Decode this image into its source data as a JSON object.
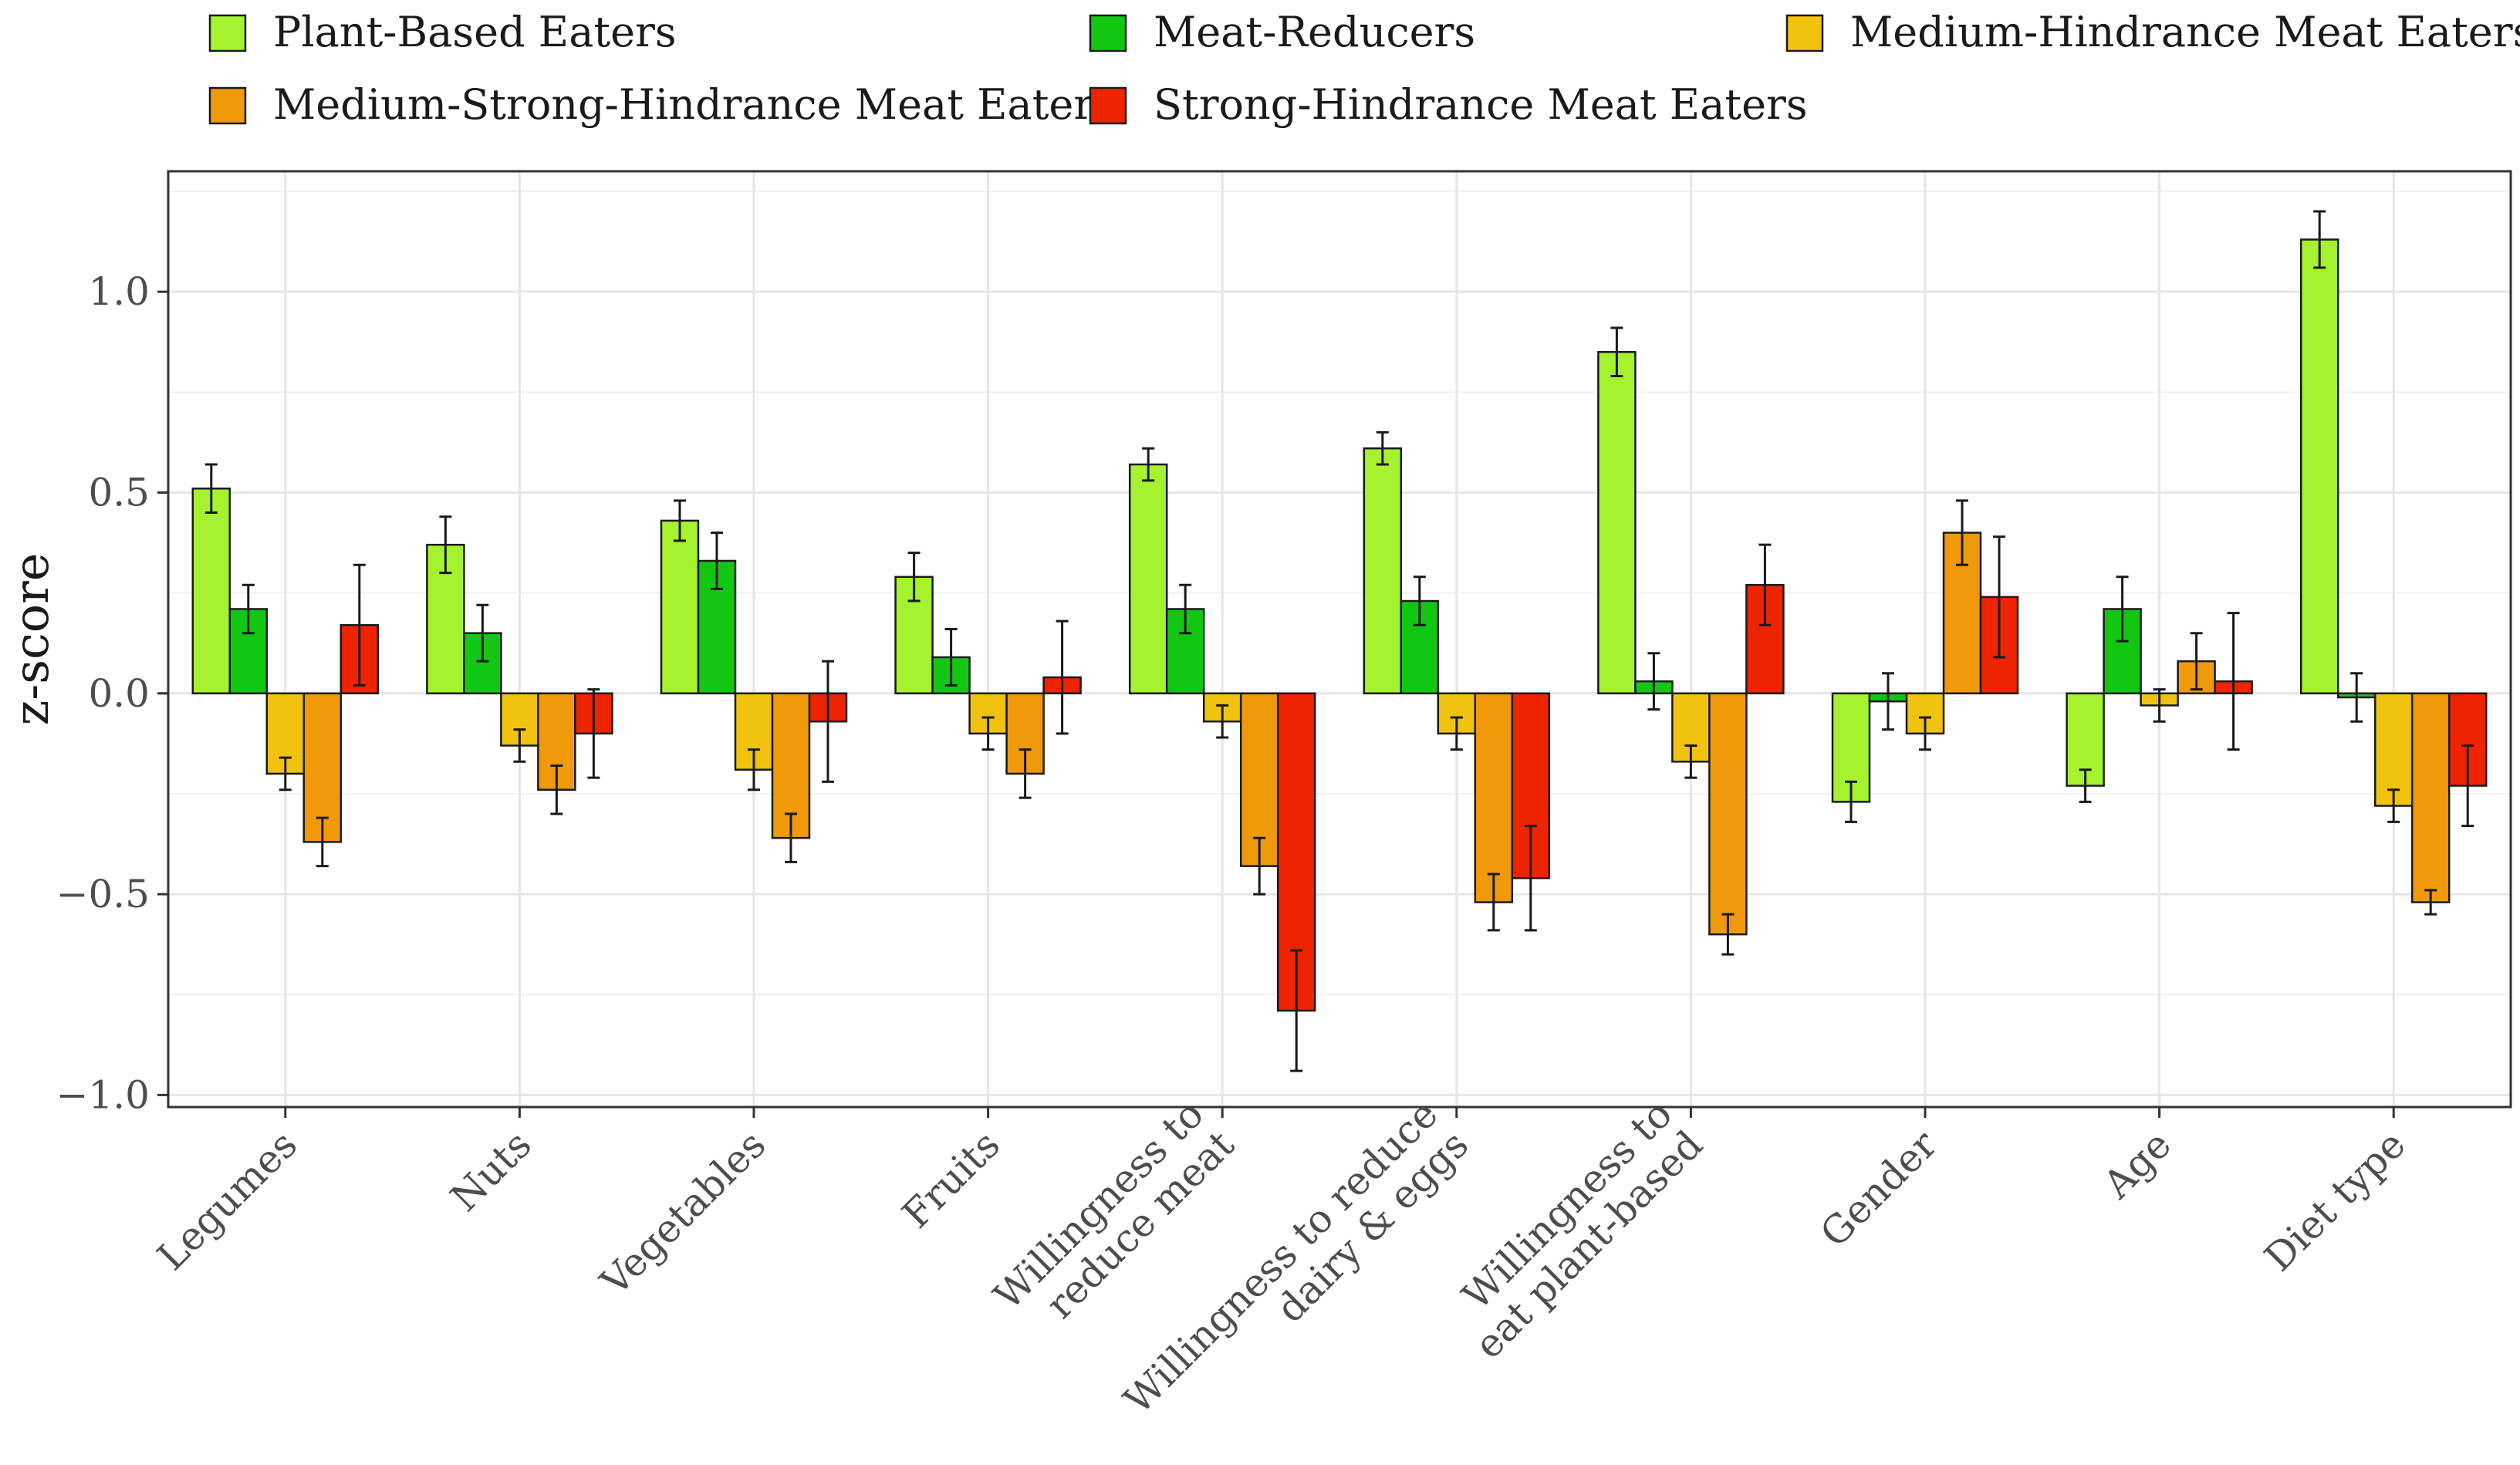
{
  "chart_data": {
    "type": "bar",
    "title": "",
    "xlabel": "",
    "ylabel": "z-score",
    "ylim": [
      -1.03,
      1.3
    ],
    "yticks": [
      1.0,
      0.5,
      0.0,
      -0.5,
      -1.0
    ],
    "ytick_labels": [
      "1.0",
      "0.5",
      "0.0",
      "−0.5",
      "−1.0"
    ],
    "grid": true,
    "legend_position": "top",
    "categories": [
      [
        "Legumes"
      ],
      [
        "Nuts"
      ],
      [
        "Vegetables"
      ],
      [
        "Fruits"
      ],
      [
        "Willingness to",
        "reduce meat"
      ],
      [
        "Willingness to reduce",
        "dairy & eggs"
      ],
      [
        "Willingness to",
        "eat plant-based"
      ],
      [
        "Gender"
      ],
      [
        "Age"
      ],
      [
        "Diet type"
      ]
    ],
    "series": [
      {
        "name": "Plant-Based Eaters",
        "color": "#a5f22e",
        "values": [
          0.51,
          0.37,
          0.43,
          0.29,
          0.57,
          0.61,
          0.85,
          -0.27,
          -0.23,
          1.13
        ],
        "errors": [
          0.06,
          0.07,
          0.05,
          0.06,
          0.04,
          0.04,
          0.06,
          0.05,
          0.04,
          0.07
        ]
      },
      {
        "name": "Meat-Reducers",
        "color": "#12c712",
        "values": [
          0.21,
          0.15,
          0.33,
          0.09,
          0.21,
          0.23,
          0.03,
          -0.02,
          0.21,
          -0.01
        ],
        "errors": [
          0.06,
          0.07,
          0.07,
          0.07,
          0.06,
          0.06,
          0.07,
          0.07,
          0.08,
          0.06
        ]
      },
      {
        "name": "Medium-Hindrance Meat Eaters",
        "color": "#f2c30e",
        "values": [
          -0.2,
          -0.13,
          -0.19,
          -0.1,
          -0.07,
          -0.1,
          -0.17,
          -0.1,
          -0.03,
          -0.28
        ],
        "errors": [
          0.04,
          0.04,
          0.05,
          0.04,
          0.04,
          0.04,
          0.04,
          0.04,
          0.04,
          0.04
        ]
      },
      {
        "name": "Medium-Strong-Hindrance Meat Eaters",
        "color": "#f0990a",
        "values": [
          -0.37,
          -0.24,
          -0.36,
          -0.2,
          -0.43,
          -0.52,
          -0.6,
          0.4,
          0.08,
          -0.52
        ],
        "errors": [
          0.06,
          0.06,
          0.06,
          0.06,
          0.07,
          0.07,
          0.05,
          0.08,
          0.07,
          0.03
        ]
      },
      {
        "name": "Strong-Hindrance Meat Eaters",
        "color": "#ee2300",
        "values": [
          0.17,
          -0.1,
          -0.07,
          0.04,
          -0.79,
          -0.46,
          0.27,
          0.24,
          0.03,
          -0.23
        ],
        "errors": [
          0.15,
          0.11,
          0.15,
          0.14,
          0.15,
          0.13,
          0.1,
          0.15,
          0.17,
          0.1
        ]
      }
    ]
  }
}
